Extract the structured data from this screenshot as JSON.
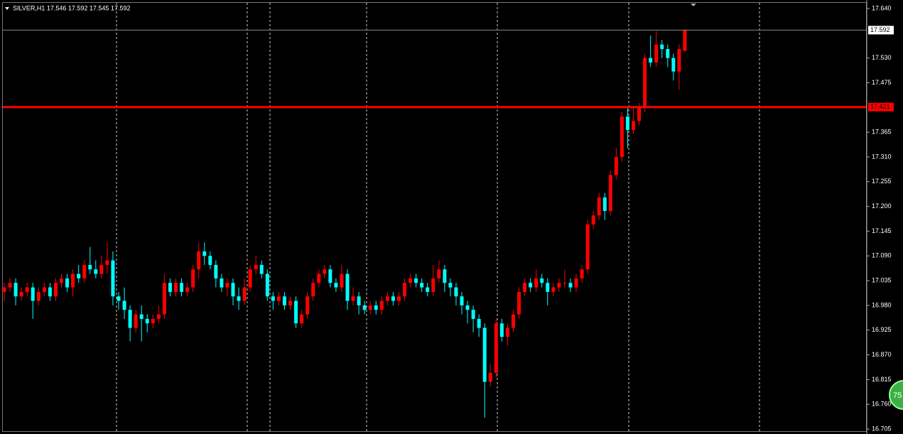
{
  "chart_data": {
    "type": "candlestick",
    "title": "SILVER,H1  17.546 17.592 17.545 17.592",
    "up_color": "#ff0000",
    "down_color": "#00ffff",
    "ylim": [
      16.694,
      17.659
    ],
    "yticks": [
      {
        "value": 17.64,
        "label": "17.640"
      },
      {
        "value": 17.53,
        "label": "17.530"
      },
      17.475,
      17.365,
      {
        "value": 17.31,
        "label": "17.310"
      },
      17.255,
      {
        "value": 17.2,
        "label": "17.200"
      },
      17.145,
      {
        "value": 17.09,
        "label": "17.090"
      },
      17.035,
      {
        "value": 16.98,
        "label": "16.980"
      },
      16.925,
      {
        "value": 16.87,
        "label": "16.870"
      },
      16.815,
      {
        "value": 16.76,
        "label": "16.760"
      },
      16.705
    ],
    "hline": {
      "value": 17.421,
      "label": "17.421",
      "color": "#ff0000"
    },
    "current_price": {
      "value": 17.592,
      "label": "17.592"
    },
    "badge": "75",
    "open": [
      17.01,
      17.02,
      17.03,
      17.0,
      17.01,
      17.02,
      16.99,
      17.01,
      17.02,
      17.0,
      17.03,
      17.04,
      17.02,
      17.05,
      17.04,
      17.07,
      17.06,
      17.05,
      17.07,
      17.08,
      17.0,
      16.99,
      16.97,
      16.93,
      16.96,
      16.95,
      16.94,
      16.95,
      16.96,
      17.03,
      17.01,
      17.03,
      17.01,
      17.02,
      17.06,
      17.1,
      17.09,
      17.07,
      17.04,
      17.02,
      17.03,
      17.0,
      16.99,
      17.02,
      17.06,
      17.07,
      17.05,
      17.0,
      16.99,
      17.0,
      16.98,
      16.99,
      16.94,
      16.96,
      17.0,
      17.03,
      17.05,
      17.06,
      17.03,
      17.02,
      17.05,
      16.99,
      17.0,
      16.98,
      16.97,
      16.98,
      16.97,
      16.99,
      17.0,
      16.99,
      17.0,
      17.03,
      17.04,
      17.03,
      17.02,
      17.01,
      17.04,
      17.06,
      17.03,
      17.02,
      17.0,
      16.98,
      16.97,
      16.95,
      16.93,
      16.81,
      16.83,
      16.94,
      16.91,
      16.93,
      16.96,
      17.01,
      17.03,
      17.02,
      17.04,
      17.03,
      17.01,
      17.02,
      17.03,
      17.03,
      17.02,
      17.04,
      17.06,
      17.16,
      17.18,
      17.22,
      17.19,
      17.27,
      17.31,
      17.4,
      17.37,
      17.39,
      17.42,
      17.53,
      17.52,
      17.56,
      17.55,
      17.53,
      17.5,
      17.546
    ],
    "high": [
      17.03,
      17.04,
      17.04,
      17.02,
      17.03,
      17.03,
      17.02,
      17.03,
      17.03,
      17.04,
      17.05,
      17.05,
      17.06,
      17.07,
      17.08,
      17.11,
      17.08,
      17.09,
      17.12,
      17.1,
      17.01,
      17.02,
      16.98,
      16.97,
      16.98,
      16.96,
      16.96,
      16.98,
      17.05,
      17.04,
      17.04,
      17.04,
      17.03,
      17.07,
      17.12,
      17.12,
      17.1,
      17.08,
      17.05,
      17.04,
      17.04,
      17.02,
      17.04,
      17.07,
      17.09,
      17.08,
      17.06,
      17.01,
      17.01,
      17.01,
      17.0,
      17.0,
      16.97,
      17.01,
      17.04,
      17.06,
      17.07,
      17.07,
      17.04,
      17.07,
      17.06,
      17.02,
      17.01,
      16.99,
      16.99,
      16.99,
      17.0,
      17.01,
      17.01,
      17.01,
      17.04,
      17.05,
      17.05,
      17.04,
      17.03,
      17.07,
      17.08,
      17.07,
      17.04,
      17.03,
      17.01,
      16.99,
      16.98,
      16.96,
      16.94,
      16.85,
      16.95,
      16.95,
      16.94,
      16.97,
      17.02,
      17.04,
      17.04,
      17.06,
      17.05,
      17.04,
      17.03,
      17.04,
      17.06,
      17.04,
      17.05,
      17.07,
      17.17,
      17.19,
      17.23,
      17.23,
      17.28,
      17.33,
      17.41,
      17.42,
      17.42,
      17.43,
      17.54,
      17.58,
      17.59,
      17.57,
      17.56,
      17.54,
      17.56,
      17.592
    ],
    "low": [
      16.99,
      17.01,
      16.98,
      16.99,
      17.0,
      16.95,
      16.98,
      17.0,
      16.99,
      16.99,
      17.02,
      17.01,
      17.0,
      17.03,
      17.03,
      17.05,
      17.04,
      17.04,
      17.05,
      16.98,
      16.97,
      16.95,
      16.9,
      16.92,
      16.9,
      16.92,
      16.93,
      16.94,
      16.95,
      17.0,
      17.0,
      17.0,
      17.0,
      17.01,
      17.04,
      17.07,
      17.06,
      17.02,
      17.01,
      17.0,
      16.98,
      16.97,
      16.98,
      17.01,
      17.05,
      17.04,
      16.99,
      16.97,
      16.98,
      16.97,
      16.97,
      16.93,
      16.93,
      16.95,
      16.99,
      17.02,
      17.04,
      17.02,
      17.01,
      17.01,
      16.97,
      16.98,
      16.96,
      16.96,
      16.96,
      16.96,
      16.96,
      16.98,
      16.98,
      16.98,
      16.99,
      17.02,
      17.02,
      17.01,
      17.0,
      17.0,
      17.03,
      17.01,
      17.0,
      16.98,
      16.96,
      16.94,
      16.92,
      16.91,
      16.73,
      16.8,
      16.82,
      16.9,
      16.89,
      16.92,
      16.95,
      17.0,
      17.01,
      17.01,
      17.02,
      16.98,
      17.0,
      17.01,
      17.02,
      17.01,
      17.01,
      17.03,
      17.05,
      17.15,
      17.17,
      17.17,
      17.18,
      17.26,
      17.3,
      17.33,
      17.36,
      17.38,
      17.41,
      17.51,
      17.51,
      17.53,
      17.51,
      17.48,
      17.46,
      17.545
    ],
    "close": [
      17.02,
      17.03,
      17.0,
      17.01,
      17.02,
      16.99,
      17.01,
      17.02,
      17.0,
      17.03,
      17.04,
      17.02,
      17.05,
      17.04,
      17.07,
      17.06,
      17.05,
      17.07,
      17.08,
      17.0,
      16.99,
      16.97,
      16.93,
      16.96,
      16.95,
      16.94,
      16.95,
      16.96,
      17.03,
      17.01,
      17.03,
      17.01,
      17.02,
      17.06,
      17.1,
      17.09,
      17.07,
      17.04,
      17.02,
      17.03,
      17.0,
      16.99,
      17.02,
      17.06,
      17.07,
      17.05,
      17.0,
      16.99,
      17.0,
      16.98,
      16.99,
      16.94,
      16.96,
      17.0,
      17.03,
      17.05,
      17.06,
      17.03,
      17.02,
      17.05,
      16.99,
      17.0,
      16.98,
      16.97,
      16.98,
      16.97,
      16.99,
      17.0,
      16.99,
      17.0,
      17.03,
      17.04,
      17.03,
      17.02,
      17.01,
      17.04,
      17.06,
      17.03,
      17.02,
      17.0,
      16.98,
      16.97,
      16.95,
      16.93,
      16.81,
      16.83,
      16.94,
      16.91,
      16.93,
      16.96,
      17.01,
      17.03,
      17.02,
      17.04,
      17.03,
      17.01,
      17.02,
      17.03,
      17.03,
      17.02,
      17.04,
      17.06,
      17.16,
      17.18,
      17.22,
      17.19,
      17.27,
      17.31,
      17.4,
      17.37,
      17.39,
      17.42,
      17.53,
      17.52,
      17.56,
      17.55,
      17.53,
      17.5,
      17.55,
      17.592
    ]
  }
}
